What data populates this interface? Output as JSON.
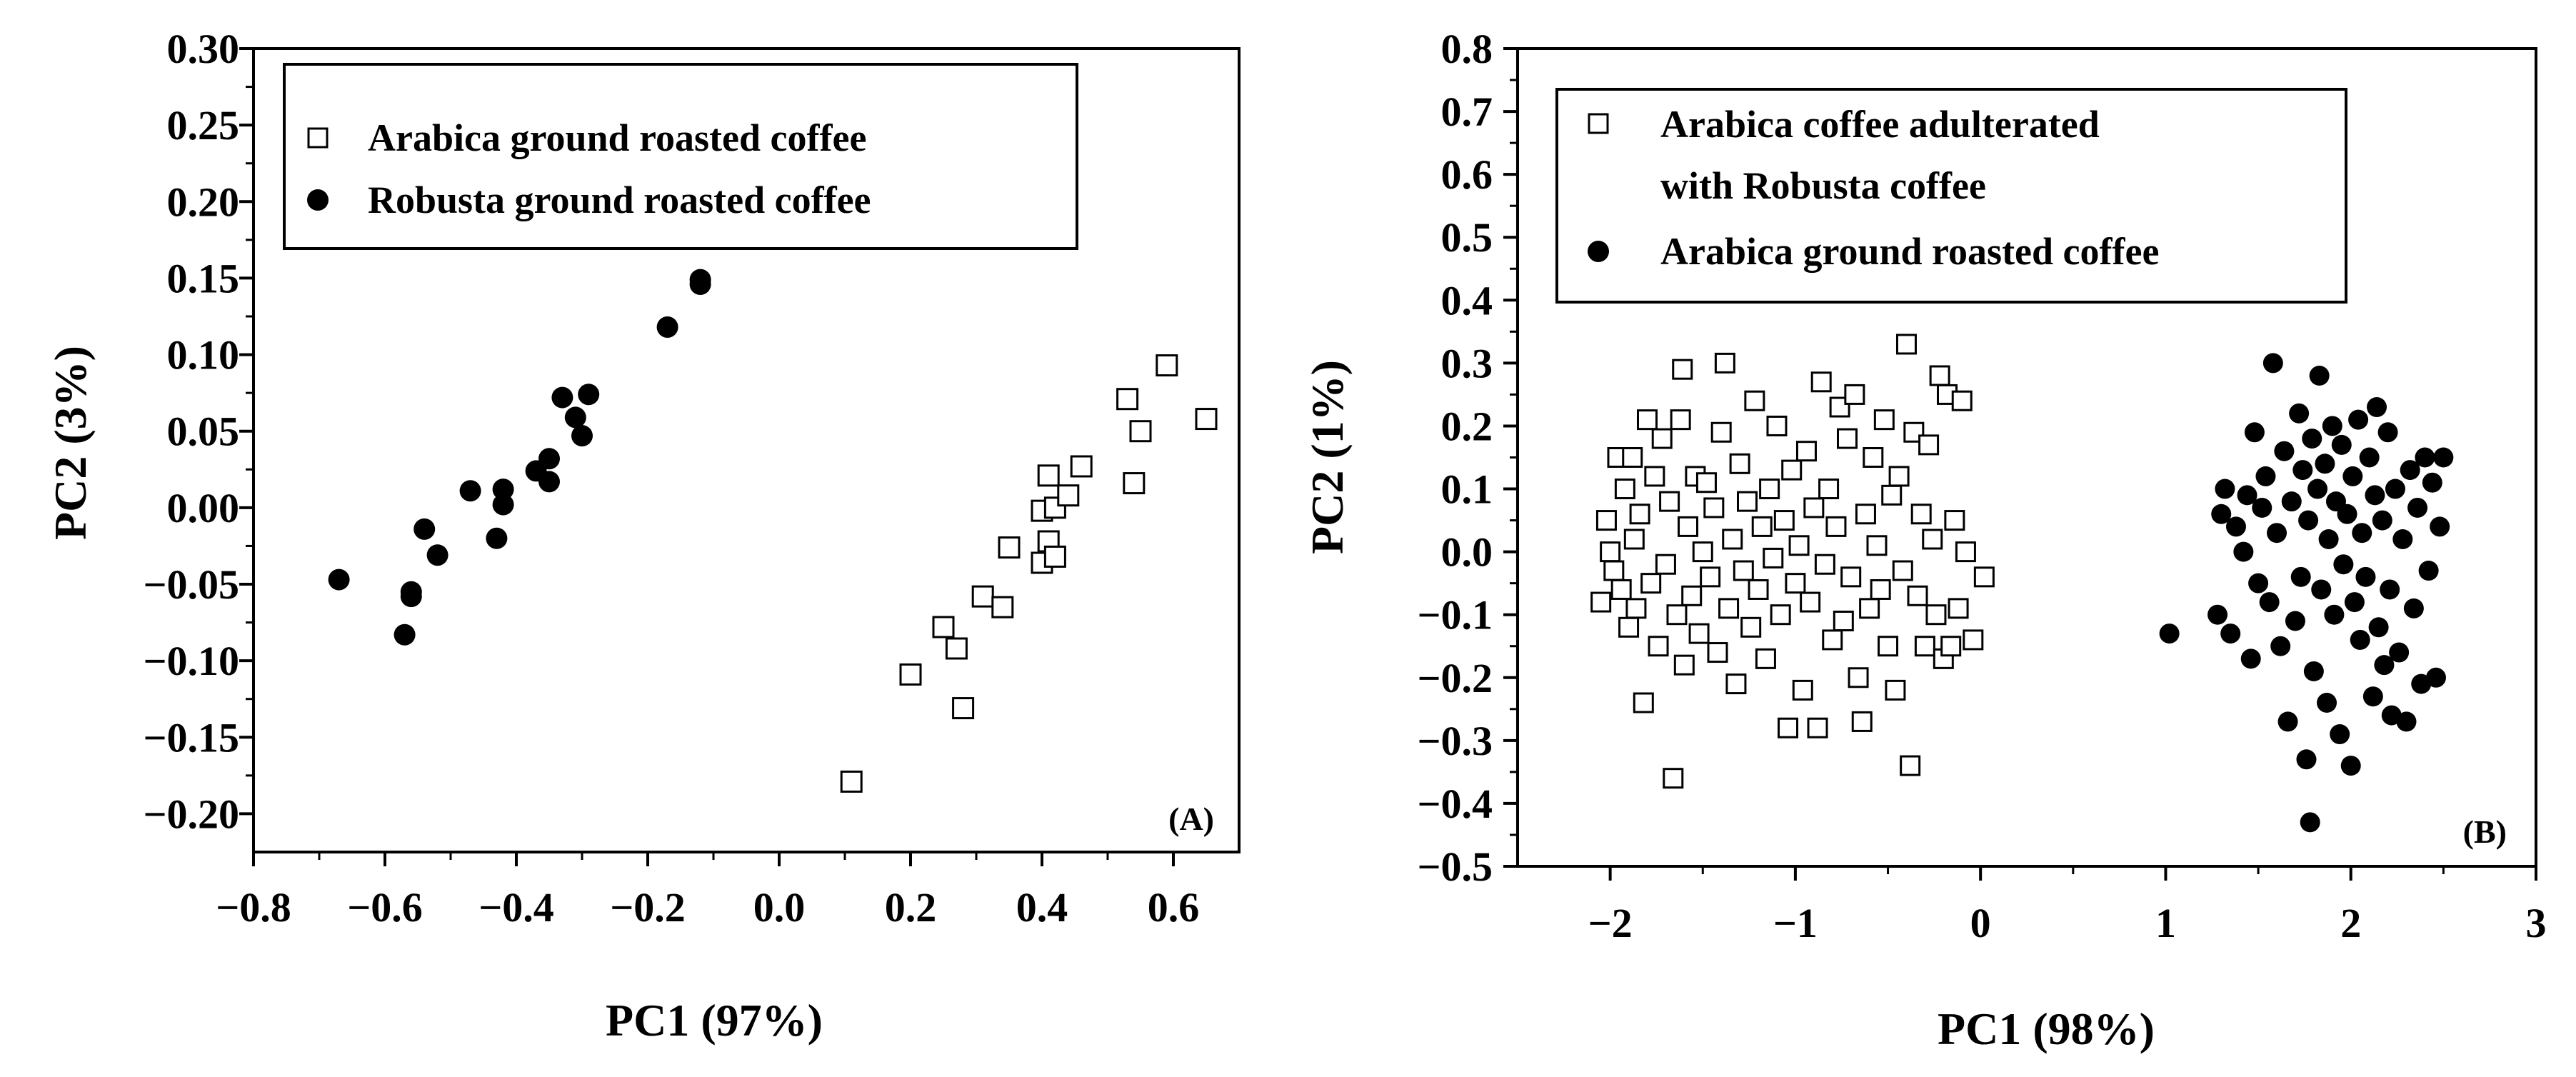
{
  "chart_data": [
    {
      "type": "scatter",
      "panel_label": "(A)",
      "xlabel": "PC1 (97%)",
      "ylabel": "PC2 (3%)",
      "xlim": [
        -0.8,
        0.7
      ],
      "ylim": [
        -0.225,
        0.3
      ],
      "xticks": [
        -0.8,
        -0.6,
        -0.4,
        -0.2,
        0.0,
        0.2,
        0.4,
        0.6
      ],
      "xtick_labels": [
        "−0.8",
        "−0.6",
        "−0.4",
        "−0.2",
        "0.0",
        "0.2",
        "0.4",
        "0.6"
      ],
      "yticks": [
        -0.2,
        -0.15,
        -0.1,
        -0.05,
        0.0,
        0.05,
        0.1,
        0.15,
        0.2,
        0.25,
        0.3
      ],
      "ytick_labels": [
        "−0.20",
        "−0.15",
        "−0.10",
        "−0.05",
        "0.00",
        "0.05",
        "0.10",
        "0.15",
        "0.20",
        "0.25",
        "0.30"
      ],
      "legend_position": "top-left",
      "series": [
        {
          "name": "Arabica ground roasted coffee",
          "marker": "open-square",
          "points": [
            [
              0.11,
              -0.179
            ],
            [
              0.2,
              -0.109
            ],
            [
              0.25,
              -0.078
            ],
            [
              0.27,
              -0.092
            ],
            [
              0.28,
              -0.131
            ],
            [
              0.31,
              -0.058
            ],
            [
              0.34,
              -0.065
            ],
            [
              0.35,
              -0.026
            ],
            [
              0.4,
              -0.036
            ],
            [
              0.41,
              -0.022
            ],
            [
              0.4,
              -0.002
            ],
            [
              0.41,
              0.021
            ],
            [
              0.42,
              0.0
            ],
            [
              0.42,
              -0.032
            ],
            [
              0.44,
              0.008
            ],
            [
              0.46,
              0.027
            ],
            [
              0.53,
              0.071
            ],
            [
              0.54,
              0.016
            ],
            [
              0.55,
              0.05
            ],
            [
              0.59,
              0.093
            ],
            [
              0.65,
              0.058
            ]
          ]
        },
        {
          "name": "Robusta ground roasted coffee",
          "marker": "filled-circle",
          "points": [
            [
              -0.67,
              -0.047
            ],
            [
              -0.57,
              -0.083
            ],
            [
              -0.56,
              -0.058
            ],
            [
              -0.56,
              -0.055
            ],
            [
              -0.54,
              -0.014
            ],
            [
              -0.52,
              -0.031
            ],
            [
              -0.47,
              0.011
            ],
            [
              -0.43,
              -0.02
            ],
            [
              -0.42,
              0.002
            ],
            [
              -0.42,
              0.012
            ],
            [
              -0.37,
              0.024
            ],
            [
              -0.35,
              0.032
            ],
            [
              -0.35,
              0.017
            ],
            [
              -0.33,
              0.072
            ],
            [
              -0.31,
              0.059
            ],
            [
              -0.3,
              0.047
            ],
            [
              -0.29,
              0.074
            ],
            [
              -0.17,
              0.118
            ],
            [
              -0.12,
              0.146
            ],
            [
              -0.12,
              0.149
            ]
          ]
        }
      ]
    },
    {
      "type": "scatter",
      "panel_label": "(B)",
      "xlabel": "PC1 (98%)",
      "ylabel": "PC2 (1%)",
      "xlim": [
        -2.5,
        3.0
      ],
      "ylim": [
        -0.5,
        0.8
      ],
      "xticks": [
        -2,
        -1,
        0,
        1,
        2,
        3
      ],
      "xtick_labels": [
        "−2",
        "−1",
        "0",
        "1",
        "2",
        "3"
      ],
      "yticks": [
        -0.5,
        -0.4,
        -0.3,
        -0.2,
        -0.1,
        0.0,
        0.1,
        0.2,
        0.3,
        0.4,
        0.5,
        0.6,
        0.7,
        0.8
      ],
      "ytick_labels": [
        "−0.5",
        "−0.4",
        "−0.3",
        "−0.2",
        "−0.1",
        "0.0",
        "0.1",
        "0.2",
        "0.3",
        "0.4",
        "0.5",
        "0.6",
        "0.7",
        "0.8"
      ],
      "legend_position": "top-left",
      "series": [
        {
          "name": "Arabica coffee adulterated with Robusta coffee",
          "legend_lines": [
            "Arabica coffee adulterated",
            "with Robusta coffee"
          ],
          "marker": "open-square",
          "points": [
            [
              -2.05,
              -0.08
            ],
            [
              -2.02,
              0.05
            ],
            [
              -2.0,
              0.0
            ],
            [
              -1.98,
              -0.03
            ],
            [
              -1.96,
              0.15
            ],
            [
              -1.94,
              -0.06
            ],
            [
              -1.92,
              0.1
            ],
            [
              -1.9,
              -0.12
            ],
            [
              -1.88,
              0.15
            ],
            [
              -1.87,
              0.02
            ],
            [
              -1.86,
              -0.09
            ],
            [
              -1.84,
              0.06
            ],
            [
              -1.82,
              -0.24
            ],
            [
              -1.8,
              0.21
            ],
            [
              -1.78,
              -0.05
            ],
            [
              -1.76,
              0.12
            ],
            [
              -1.74,
              -0.15
            ],
            [
              -1.72,
              0.18
            ],
            [
              -1.7,
              -0.02
            ],
            [
              -1.68,
              0.08
            ],
            [
              -1.66,
              -0.36
            ],
            [
              -1.64,
              -0.1
            ],
            [
              -1.62,
              0.21
            ],
            [
              -1.61,
              0.29
            ],
            [
              -1.6,
              -0.18
            ],
            [
              -1.58,
              0.04
            ],
            [
              -1.56,
              -0.07
            ],
            [
              -1.54,
              0.12
            ],
            [
              -1.52,
              -0.13
            ],
            [
              -1.5,
              0.0
            ],
            [
              -1.48,
              0.11
            ],
            [
              -1.46,
              -0.04
            ],
            [
              -1.44,
              0.07
            ],
            [
              -1.42,
              -0.16
            ],
            [
              -1.4,
              0.19
            ],
            [
              -1.38,
              0.3
            ],
            [
              -1.36,
              -0.09
            ],
            [
              -1.34,
              0.02
            ],
            [
              -1.32,
              -0.21
            ],
            [
              -1.3,
              0.14
            ],
            [
              -1.28,
              -0.03
            ],
            [
              -1.26,
              0.08
            ],
            [
              -1.24,
              -0.12
            ],
            [
              -1.22,
              0.24
            ],
            [
              -1.2,
              -0.06
            ],
            [
              -1.18,
              0.04
            ],
            [
              -1.16,
              -0.17
            ],
            [
              -1.14,
              0.1
            ],
            [
              -1.12,
              -0.01
            ],
            [
              -1.1,
              0.2
            ],
            [
              -1.08,
              -0.1
            ],
            [
              -1.06,
              0.05
            ],
            [
              -1.04,
              -0.28
            ],
            [
              -1.02,
              0.13
            ],
            [
              -1.0,
              -0.05
            ],
            [
              -0.98,
              0.01
            ],
            [
              -0.96,
              -0.22
            ],
            [
              -0.94,
              0.16
            ],
            [
              -0.92,
              -0.08
            ],
            [
              -0.9,
              0.07
            ],
            [
              -0.88,
              -0.28
            ],
            [
              -0.86,
              0.27
            ],
            [
              -0.84,
              -0.02
            ],
            [
              -0.82,
              0.1
            ],
            [
              -0.8,
              -0.14
            ],
            [
              -0.78,
              0.04
            ],
            [
              -0.76,
              0.23
            ],
            [
              -0.74,
              -0.11
            ],
            [
              -0.72,
              0.18
            ],
            [
              -0.7,
              -0.04
            ],
            [
              -0.68,
              0.25
            ],
            [
              -0.66,
              -0.2
            ],
            [
              -0.64,
              -0.27
            ],
            [
              -0.62,
              0.06
            ],
            [
              -0.6,
              -0.09
            ],
            [
              -0.58,
              0.15
            ],
            [
              -0.56,
              0.01
            ],
            [
              -0.54,
              -0.06
            ],
            [
              -0.52,
              0.21
            ],
            [
              -0.5,
              -0.15
            ],
            [
              -0.48,
              0.09
            ],
            [
              -0.46,
              -0.22
            ],
            [
              -0.44,
              0.12
            ],
            [
              -0.42,
              -0.03
            ],
            [
              -0.4,
              0.33
            ],
            [
              -0.38,
              -0.34
            ],
            [
              -0.36,
              0.19
            ],
            [
              -0.34,
              -0.07
            ],
            [
              -0.32,
              0.06
            ],
            [
              -0.3,
              -0.15
            ],
            [
              -0.28,
              0.17
            ],
            [
              -0.26,
              0.02
            ],
            [
              -0.24,
              -0.1
            ],
            [
              -0.22,
              0.28
            ],
            [
              -0.2,
              -0.17
            ],
            [
              -0.18,
              0.25
            ],
            [
              -0.16,
              -0.15
            ],
            [
              -0.14,
              0.05
            ],
            [
              -0.12,
              -0.09
            ],
            [
              -0.1,
              0.24
            ],
            [
              -0.08,
              0.0
            ],
            [
              -0.04,
              -0.14
            ],
            [
              0.02,
              -0.04
            ]
          ]
        },
        {
          "name": "Arabica ground roasted coffee",
          "marker": "filled-circle",
          "points": [
            [
              1.02,
              -0.13
            ],
            [
              1.28,
              -0.1
            ],
            [
              1.3,
              0.06
            ],
            [
              1.32,
              0.1
            ],
            [
              1.35,
              -0.13
            ],
            [
              1.38,
              0.04
            ],
            [
              1.42,
              -0.0
            ],
            [
              1.44,
              0.09
            ],
            [
              1.46,
              -0.17
            ],
            [
              1.48,
              0.19
            ],
            [
              1.5,
              -0.05
            ],
            [
              1.52,
              0.07
            ],
            [
              1.54,
              0.12
            ],
            [
              1.56,
              -0.08
            ],
            [
              1.58,
              0.3
            ],
            [
              1.6,
              0.03
            ],
            [
              1.62,
              -0.15
            ],
            [
              1.64,
              0.16
            ],
            [
              1.66,
              -0.27
            ],
            [
              1.68,
              0.08
            ],
            [
              1.7,
              -0.11
            ],
            [
              1.72,
              0.22
            ],
            [
              1.73,
              -0.04
            ],
            [
              1.74,
              0.13
            ],
            [
              1.76,
              -0.33
            ],
            [
              1.77,
              0.05
            ],
            [
              1.78,
              -0.43
            ],
            [
              1.79,
              0.18
            ],
            [
              1.8,
              -0.19
            ],
            [
              1.82,
              0.1
            ],
            [
              1.83,
              0.28
            ],
            [
              1.84,
              -0.06
            ],
            [
              1.86,
              0.14
            ],
            [
              1.87,
              -0.24
            ],
            [
              1.88,
              0.02
            ],
            [
              1.9,
              0.2
            ],
            [
              1.91,
              -0.1
            ],
            [
              1.92,
              0.08
            ],
            [
              1.94,
              -0.29
            ],
            [
              1.95,
              0.17
            ],
            [
              1.96,
              -0.02
            ],
            [
              1.98,
              0.06
            ],
            [
              2.0,
              -0.34
            ],
            [
              2.01,
              0.12
            ],
            [
              2.02,
              -0.08
            ],
            [
              2.04,
              0.21
            ],
            [
              2.05,
              -0.14
            ],
            [
              2.06,
              0.03
            ],
            [
              2.08,
              -0.04
            ],
            [
              2.1,
              0.15
            ],
            [
              2.12,
              -0.23
            ],
            [
              2.13,
              0.09
            ],
            [
              2.14,
              0.23
            ],
            [
              2.15,
              -0.12
            ],
            [
              2.17,
              0.05
            ],
            [
              2.18,
              -0.18
            ],
            [
              2.2,
              0.19
            ],
            [
              2.21,
              -0.06
            ],
            [
              2.22,
              -0.26
            ],
            [
              2.24,
              0.1
            ],
            [
              2.26,
              -0.16
            ],
            [
              2.28,
              0.02
            ],
            [
              2.3,
              -0.27
            ],
            [
              2.32,
              0.13
            ],
            [
              2.34,
              -0.09
            ],
            [
              2.36,
              0.07
            ],
            [
              2.38,
              -0.21
            ],
            [
              2.4,
              0.15
            ],
            [
              2.42,
              -0.03
            ],
            [
              2.44,
              0.11
            ],
            [
              2.46,
              -0.2
            ],
            [
              2.48,
              0.04
            ],
            [
              2.5,
              0.15
            ]
          ]
        }
      ]
    }
  ]
}
